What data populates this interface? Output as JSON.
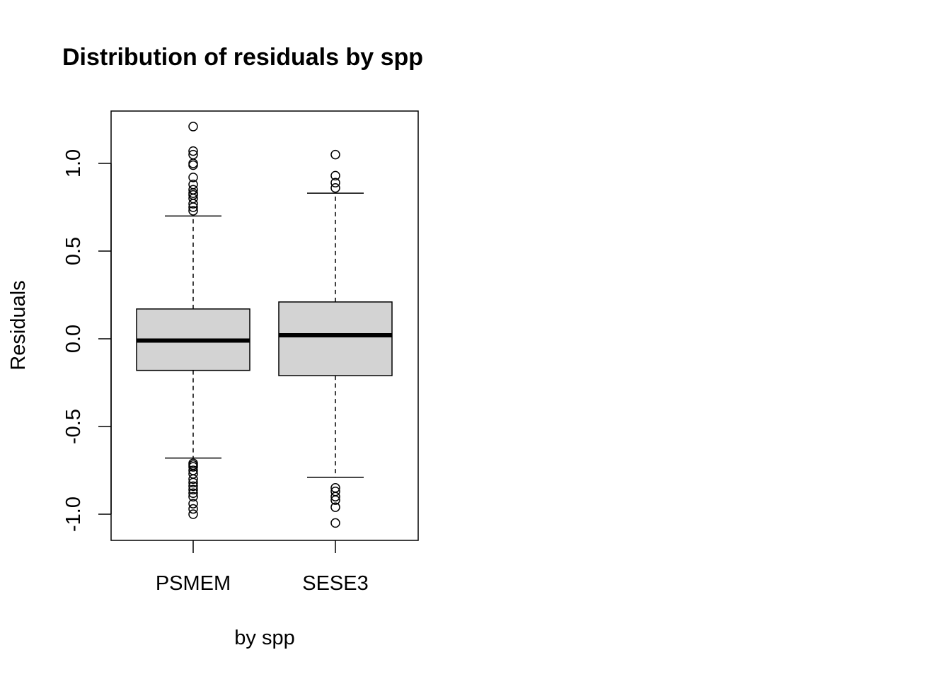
{
  "chart_data": {
    "type": "boxplot",
    "title": "Distribution of residuals by spp",
    "xlabel": "by spp",
    "ylabel": "Residuals",
    "categories": [
      "PSMEM",
      "SESE3"
    ],
    "ylim": [
      -1.1,
      1.25
    ],
    "yticks": [
      -1.0,
      -0.5,
      0.0,
      0.5,
      1.0
    ],
    "ytick_labels": [
      "-1.0",
      "-0.5",
      "0.0",
      "0.5",
      "1.0"
    ],
    "box_fill": "#d3d3d3",
    "line_color": "#000000",
    "grid": false,
    "boxes": [
      {
        "category": "PSMEM",
        "whisker_low": -0.68,
        "q1": -0.18,
        "median": -0.01,
        "q3": 0.17,
        "whisker_high": 0.7,
        "outliers": [
          1.21,
          1.07,
          1.05,
          1.0,
          0.99,
          0.92,
          0.88,
          0.85,
          0.83,
          0.82,
          0.8,
          0.77,
          0.75,
          0.73,
          -0.71,
          -0.72,
          -0.73,
          -0.75,
          -0.77,
          -0.8,
          -0.82,
          -0.84,
          -0.86,
          -0.88,
          -0.9,
          -0.94,
          -0.97,
          -1.0
        ]
      },
      {
        "category": "SESE3",
        "whisker_low": -0.79,
        "q1": -0.21,
        "median": 0.02,
        "q3": 0.21,
        "whisker_high": 0.83,
        "outliers": [
          1.05,
          0.93,
          0.89,
          0.86,
          -0.85,
          -0.87,
          -0.9,
          -0.92,
          -0.96,
          -1.05
        ]
      }
    ]
  }
}
